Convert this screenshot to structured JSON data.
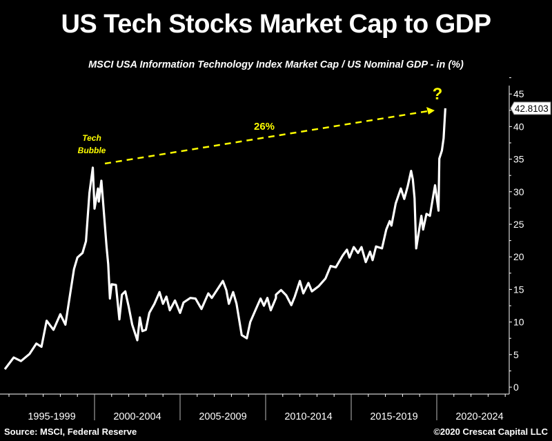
{
  "chart_data": {
    "type": "line",
    "title": "US Tech Stocks Market Cap to GDP",
    "subtitle": "MSCI USA Information Technology Index Market Cap / US Nominal GDP - in (%)",
    "xlabel": "",
    "ylabel": "",
    "x_tick_labels": [
      "1995-1999",
      "2000-2004",
      "2005-2009",
      "2010-2014",
      "2015-2019",
      "2020-2024"
    ],
    "y_ticks": [
      0,
      5,
      10,
      15,
      20,
      25,
      30,
      35,
      40,
      45
    ],
    "ylim": [
      0,
      45
    ],
    "xlim": [
      1994.7,
      2024.2
    ],
    "grid": false,
    "y_axis_side": "right",
    "last_value_label": "42.8103",
    "line_color": "#ffffff",
    "annotation_color": "#ffff00",
    "annotations": {
      "peak_label": "Tech Bubble",
      "change_label": "26%",
      "question": "?"
    },
    "x": [
      1994.76,
      1995.28,
      1995.7,
      1996.2,
      1996.6,
      1996.9,
      1997.2,
      1997.6,
      1998.0,
      1998.3,
      1998.8,
      1999.0,
      1999.3,
      1999.5,
      1999.7,
      1999.9,
      2000.0,
      2000.2,
      2000.25,
      2000.4,
      2000.5,
      2000.7,
      2000.8,
      2000.9,
      2001.0,
      2001.25,
      2001.45,
      2001.6,
      2001.8,
      2002.0,
      2002.2,
      2002.5,
      2002.65,
      2002.8,
      2003.0,
      2003.2,
      2003.5,
      2003.8,
      2004.0,
      2004.2,
      2004.4,
      2004.7,
      2005.0,
      2005.2,
      2005.6,
      2005.9,
      2006.25,
      2006.65,
      2006.85,
      2007.2,
      2007.5,
      2007.7,
      2007.85,
      2008.1,
      2008.3,
      2008.6,
      2008.9,
      2009.1,
      2009.4,
      2009.7,
      2009.9,
      2010.1,
      2010.3,
      2010.6,
      2010.6,
      2010.9,
      2011.2,
      2011.5,
      2011.7,
      2012.0,
      2012.2,
      2012.5,
      2012.7,
      2013.1,
      2013.5,
      2013.8,
      2014.1,
      2014.5,
      2014.75,
      2014.9,
      2015.15,
      2015.4,
      2015.6,
      2015.85,
      2016.1,
      2016.25,
      2016.45,
      2016.8,
      2017.05,
      2017.25,
      2017.35,
      2017.6,
      2017.9,
      2018.1,
      2018.3,
      2018.5,
      2018.6,
      2018.7,
      2018.8,
      2019.1,
      2019.2,
      2019.4,
      2019.6,
      2019.75,
      2019.9,
      2020.1,
      2020.15,
      2020.3,
      2020.4,
      2020.5
    ],
    "values": [
      2.75,
      4.55,
      4.0,
      5.1,
      6.7,
      6.2,
      10.2,
      8.8,
      11.2,
      9.6,
      18.1,
      19.9,
      20.6,
      22.4,
      29.8,
      33.7,
      27.4,
      30.5,
      28.5,
      31.7,
      28.4,
      21.6,
      18.9,
      13.6,
      15.8,
      15.7,
      10.4,
      14.2,
      14.7,
      12.3,
      9.6,
      7.2,
      10.7,
      8.6,
      8.8,
      11.4,
      12.8,
      14.6,
      12.8,
      13.9,
      11.8,
      13.3,
      11.4,
      13.0,
      13.7,
      13.6,
      12.0,
      14.4,
      13.7,
      15.1,
      16.3,
      14.9,
      12.8,
      14.6,
      12.8,
      8.0,
      7.5,
      10.0,
      11.8,
      13.6,
      12.5,
      13.7,
      11.8,
      13.7,
      14.2,
      14.9,
      14.1,
      12.6,
      13.9,
      16.3,
      14.4,
      16.0,
      14.7,
      15.5,
      16.7,
      18.6,
      18.4,
      20.2,
      21.1,
      19.9,
      21.5,
      20.6,
      21.5,
      19.2,
      20.8,
      19.5,
      21.6,
      21.3,
      24.2,
      25.5,
      24.8,
      28.2,
      30.5,
      28.9,
      30.8,
      33.2,
      31.9,
      29.0,
      21.3,
      26.3,
      24.2,
      26.6,
      26.3,
      28.7,
      31.0,
      27.1,
      35.1,
      36.3,
      38.2,
      42.81
    ]
  },
  "footer": {
    "source": "Source: MSCI, Federal Reserve",
    "copyright": "©2020 Crescat Capital LLC"
  }
}
